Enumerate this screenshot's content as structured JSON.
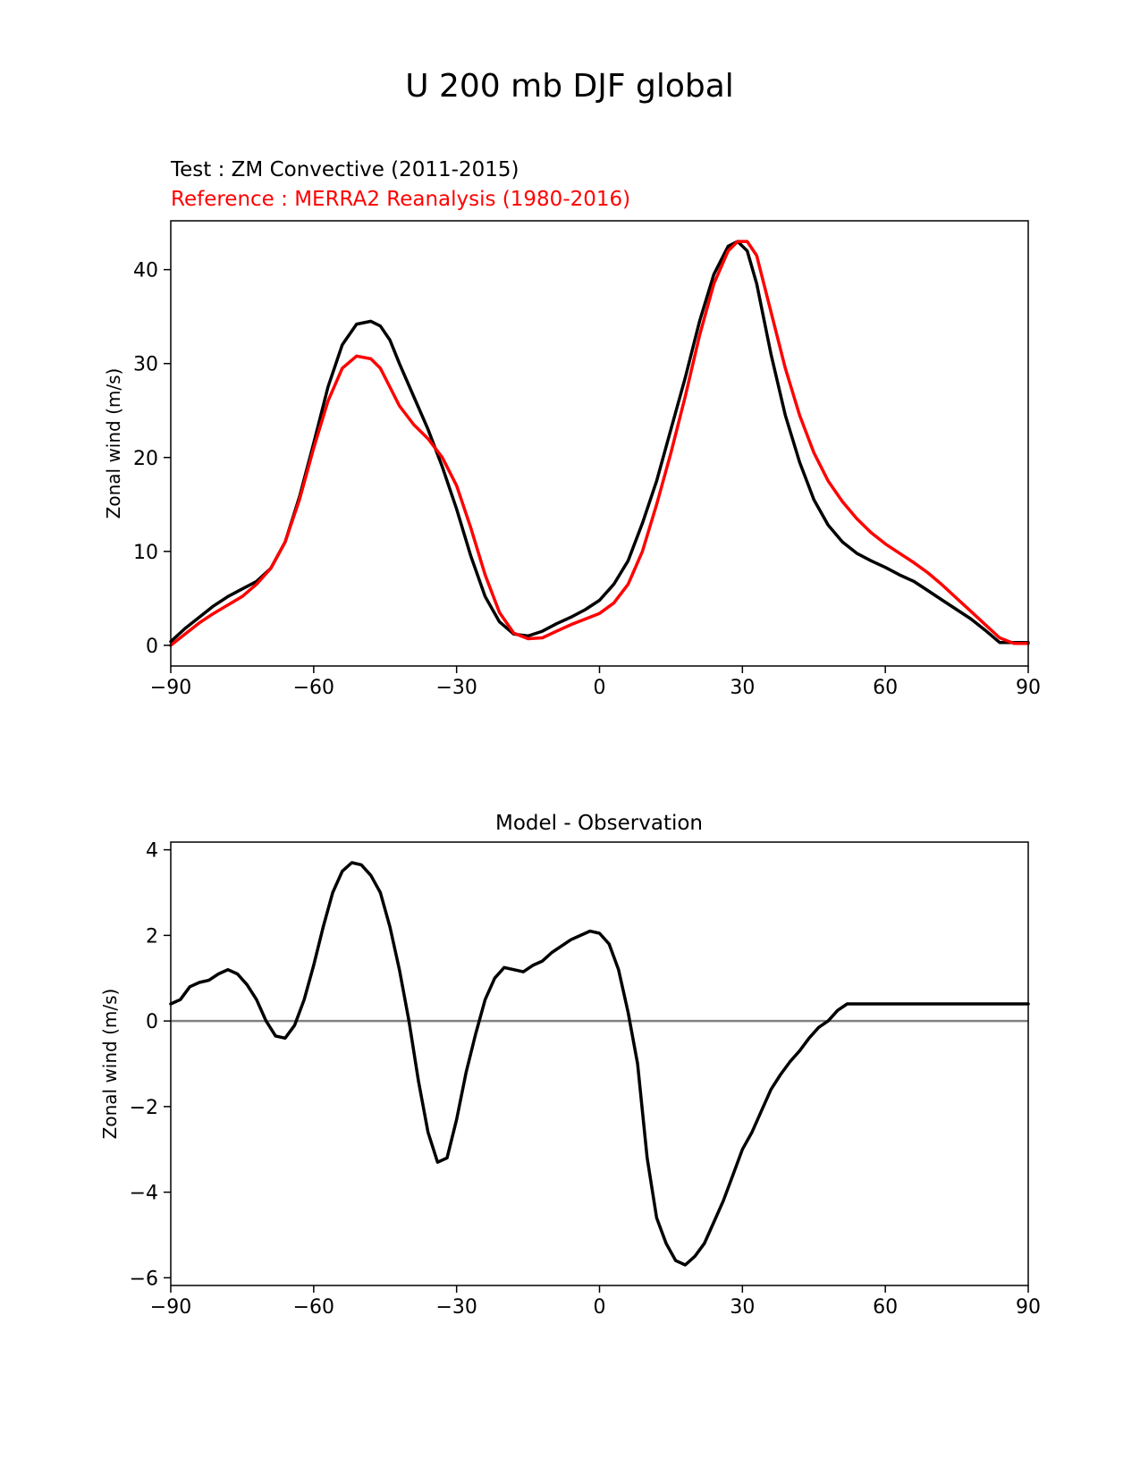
{
  "figure": {
    "title": "U 200 mb DJF global"
  },
  "chart_data": [
    {
      "type": "line",
      "test_label": "Test : ZM Convective (2011-2015)",
      "reference_label": "Reference : MERRA2 Reanalysis (1980-2016)",
      "title": "",
      "xlabel": "",
      "ylabel": "Zonal wind (m/s)",
      "xlim": [
        -90,
        90
      ],
      "ylim": [
        -2.2,
        45.2
      ],
      "xticks": [
        -90,
        -60,
        -30,
        0,
        30,
        60,
        90
      ],
      "xtick_labels": [
        "−90",
        "−60",
        "−30",
        "0",
        "30",
        "60",
        "90"
      ],
      "yticks": [
        0,
        10,
        20,
        30,
        40
      ],
      "ytick_labels": [
        "0",
        "10",
        "20",
        "30",
        "40"
      ],
      "series": [
        {
          "name": "Test : ZM Convective (2011-2015)",
          "color": "#000000",
          "x": [
            -90,
            -87,
            -84,
            -81,
            -78,
            -75,
            -72,
            -69,
            -66,
            -63,
            -60,
            -57,
            -54,
            -51,
            -48,
            -46,
            -44,
            -42,
            -39,
            -36,
            -33,
            -30,
            -27,
            -24,
            -21,
            -18,
            -15,
            -12,
            -9,
            -6,
            -3,
            0,
            3,
            6,
            9,
            12,
            15,
            18,
            21,
            24,
            27,
            29,
            31,
            33,
            36,
            39,
            42,
            45,
            48,
            51,
            54,
            57,
            60,
            63,
            66,
            69,
            72,
            75,
            78,
            81,
            84,
            87,
            90
          ],
          "y": [
            0.4,
            1.8,
            3.0,
            4.2,
            5.2,
            6.0,
            6.8,
            8.2,
            11.0,
            15.8,
            21.5,
            27.5,
            32.0,
            34.2,
            34.5,
            34.0,
            32.5,
            30.0,
            26.5,
            23.0,
            19.0,
            14.5,
            9.5,
            5.2,
            2.5,
            1.2,
            1.0,
            1.5,
            2.3,
            3.0,
            3.8,
            4.8,
            6.5,
            9.0,
            13.0,
            17.5,
            23.0,
            28.5,
            34.5,
            39.5,
            42.5,
            43.0,
            42.0,
            38.5,
            31.0,
            24.5,
            19.5,
            15.5,
            12.8,
            11.0,
            9.8,
            9.0,
            8.3,
            7.5,
            6.8,
            5.8,
            4.8,
            3.8,
            2.8,
            1.6,
            0.3,
            0.3,
            0.3
          ]
        },
        {
          "name": "Reference : MERRA2 Reanalysis (1980-2016)",
          "color": "#ff0000",
          "x": [
            -90,
            -87,
            -84,
            -81,
            -78,
            -75,
            -72,
            -69,
            -66,
            -63,
            -60,
            -57,
            -54,
            -51,
            -48,
            -46,
            -44,
            -42,
            -39,
            -36,
            -33,
            -30,
            -27,
            -24,
            -21,
            -18,
            -15,
            -12,
            -9,
            -6,
            -3,
            0,
            3,
            6,
            9,
            12,
            15,
            18,
            21,
            24,
            27,
            29,
            31,
            33,
            36,
            39,
            42,
            45,
            48,
            51,
            54,
            57,
            60,
            63,
            66,
            69,
            72,
            75,
            78,
            81,
            84,
            87,
            90
          ],
          "y": [
            0.0,
            1.2,
            2.4,
            3.4,
            4.3,
            5.2,
            6.5,
            8.2,
            11.0,
            15.5,
            21.0,
            26.0,
            29.5,
            30.8,
            30.5,
            29.5,
            27.5,
            25.5,
            23.5,
            22.0,
            20.0,
            17.0,
            12.5,
            7.5,
            3.5,
            1.3,
            0.7,
            0.8,
            1.5,
            2.2,
            2.8,
            3.4,
            4.5,
            6.5,
            10.0,
            15.0,
            20.5,
            26.5,
            33.0,
            38.5,
            42.0,
            43.0,
            43.0,
            41.5,
            35.5,
            29.5,
            24.5,
            20.5,
            17.5,
            15.3,
            13.5,
            12.0,
            10.8,
            9.8,
            8.8,
            7.7,
            6.4,
            5.0,
            3.6,
            2.2,
            0.8,
            0.2,
            0.2
          ]
        }
      ]
    },
    {
      "type": "line",
      "title": "Model - Observation",
      "xlabel": "",
      "ylabel": "Zonal wind (m/s)",
      "xlim": [
        -90,
        90
      ],
      "ylim": [
        -6.18,
        4.18
      ],
      "xticks": [
        -90,
        -60,
        -30,
        0,
        30,
        60,
        90
      ],
      "xtick_labels": [
        "−90",
        "−60",
        "−30",
        "0",
        "30",
        "60",
        "90"
      ],
      "yticks": [
        4,
        2,
        0,
        -2,
        -4,
        -6
      ],
      "ytick_labels": [
        "4",
        "2",
        "0",
        "−2",
        "−4",
        "−6"
      ],
      "reference_line": {
        "y": 0,
        "color": "#808080"
      },
      "series": [
        {
          "name": "Model - Observation",
          "color": "#000000",
          "x": [
            -90,
            -88,
            -86,
            -84,
            -82,
            -80,
            -78,
            -76,
            -74,
            -72,
            -70,
            -68,
            -66,
            -64,
            -62,
            -60,
            -58,
            -56,
            -54,
            -52,
            -50,
            -48,
            -46,
            -44,
            -42,
            -40,
            -38,
            -36,
            -34,
            -32,
            -30,
            -28,
            -26,
            -24,
            -22,
            -20,
            -18,
            -16,
            -14,
            -12,
            -10,
            -8,
            -6,
            -4,
            -2,
            0,
            2,
            4,
            6,
            8,
            10,
            12,
            14,
            16,
            18,
            20,
            22,
            24,
            26,
            28,
            30,
            32,
            34,
            36,
            38,
            40,
            42,
            44,
            46,
            48,
            50,
            52,
            54,
            56,
            58,
            60,
            62,
            64,
            66,
            68,
            70,
            72,
            74,
            76,
            78,
            80,
            82,
            84,
            86,
            88,
            90
          ],
          "y": [
            0.4,
            0.5,
            0.8,
            0.9,
            0.95,
            1.1,
            1.2,
            1.1,
            0.85,
            0.5,
            0.0,
            -0.35,
            -0.4,
            -0.1,
            0.5,
            1.3,
            2.2,
            3.0,
            3.5,
            3.7,
            3.65,
            3.4,
            3.0,
            2.2,
            1.2,
            0.0,
            -1.4,
            -2.6,
            -3.3,
            -3.2,
            -2.3,
            -1.2,
            -0.3,
            0.5,
            1.0,
            1.25,
            1.2,
            1.15,
            1.3,
            1.4,
            1.6,
            1.75,
            1.9,
            2.0,
            2.1,
            2.05,
            1.8,
            1.2,
            0.2,
            -1.0,
            -3.2,
            -4.6,
            -5.2,
            -5.6,
            -5.7,
            -5.5,
            -5.2,
            -4.7,
            -4.2,
            -3.6,
            -3.0,
            -2.6,
            -2.1,
            -1.6,
            -1.25,
            -0.95,
            -0.7,
            -0.4,
            -0.15,
            0.0,
            0.25,
            0.4,
            0.4,
            0.4,
            0.4,
            0.4,
            0.4,
            0.4,
            0.4,
            0.4,
            0.4,
            0.4,
            0.4,
            0.4,
            0.4,
            0.4,
            0.4,
            0.4,
            0.4,
            0.4,
            0.4
          ]
        }
      ]
    }
  ]
}
